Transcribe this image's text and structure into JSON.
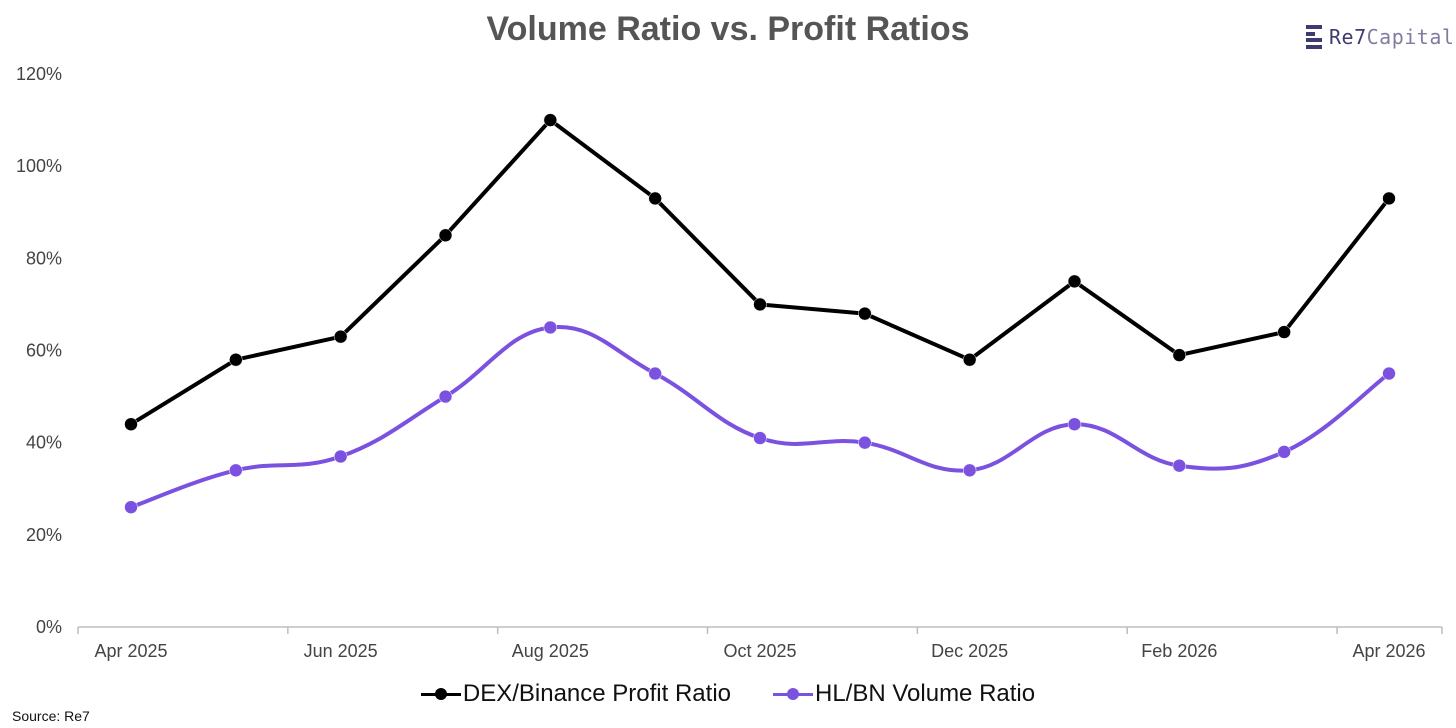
{
  "chart_data": {
    "type": "line",
    "title": "Volume Ratio vs. Profit Ratios",
    "x": [
      "Apr 2025",
      "May 2025",
      "Jun 2025",
      "Jul 2025",
      "Aug 2025",
      "Sep 2025",
      "Oct 2025",
      "Nov 2025",
      "Dec 2025",
      "Jan 2026",
      "Feb 2026",
      "Mar 2026",
      "Apr 2026"
    ],
    "x_tick_labels": [
      "Apr 2025",
      "",
      "Jun 2025",
      "",
      "Aug 2025",
      "",
      "Oct 2025",
      "",
      "Dec 2025",
      "",
      "Feb 2026",
      "",
      "Apr 2026"
    ],
    "y_ticks": [
      "0%",
      "20%",
      "40%",
      "60%",
      "80%",
      "100%",
      "120%"
    ],
    "ylim": [
      0,
      120
    ],
    "series": [
      {
        "name": "DEX/Binance Profit Ratio",
        "color": "#000000",
        "smooth": false,
        "values": [
          44,
          58,
          63,
          85,
          110,
          93,
          70,
          68,
          58,
          75,
          59,
          64,
          93
        ]
      },
      {
        "name": "HL/BN Volume Ratio",
        "color": "#7b52e0",
        "smooth": true,
        "values": [
          26,
          34,
          37,
          50,
          65,
          55,
          41,
          40,
          34,
          44,
          35,
          38,
          55
        ]
      }
    ],
    "legend_position": "bottom",
    "grid": false
  },
  "logo": {
    "brand": "Re7",
    "suffix": "Capital"
  },
  "source": "Source: Re7"
}
